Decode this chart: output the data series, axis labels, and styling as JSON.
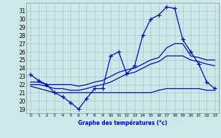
{
  "background_color": "#cce8e8",
  "grid_color": "#aacccc",
  "line_color": "#0000aa",
  "xlabel": "Graphe des températures (°c)",
  "xlim": [
    -0.5,
    23.5
  ],
  "ylim": [
    18.5,
    32.0
  ],
  "yticks": [
    19,
    20,
    21,
    22,
    23,
    24,
    25,
    26,
    27,
    28,
    29,
    30,
    31
  ],
  "xticks": [
    0,
    1,
    2,
    3,
    4,
    5,
    6,
    7,
    8,
    9,
    10,
    11,
    12,
    13,
    14,
    15,
    16,
    17,
    18,
    19,
    20,
    21,
    22,
    23
  ],
  "curve1_x": [
    0,
    1,
    2,
    3,
    4,
    5,
    6,
    7,
    8,
    9,
    10,
    11,
    12,
    13,
    14,
    15,
    16,
    17,
    18,
    19,
    20,
    21,
    22,
    23
  ],
  "curve1_y": [
    23.2,
    22.5,
    22.0,
    21.0,
    20.5,
    19.8,
    19.0,
    20.3,
    21.5,
    21.5,
    25.5,
    26.0,
    23.3,
    24.3,
    28.0,
    30.0,
    30.5,
    31.5,
    31.3,
    27.5,
    26.0,
    24.5,
    22.3,
    21.5
  ],
  "curve2_x": [
    0,
    1,
    2,
    3,
    4,
    5,
    6,
    7,
    8,
    9,
    10,
    11,
    12,
    13,
    14,
    15,
    16,
    17,
    18,
    19,
    20,
    21,
    22,
    23
  ],
  "curve2_y": [
    22.3,
    22.3,
    22.0,
    22.0,
    22.0,
    22.0,
    21.8,
    22.0,
    22.3,
    22.5,
    23.0,
    23.5,
    23.8,
    24.0,
    24.5,
    25.0,
    25.3,
    26.5,
    27.0,
    27.0,
    25.5,
    25.3,
    25.0,
    25.0
  ],
  "curve3_x": [
    0,
    1,
    2,
    3,
    4,
    5,
    6,
    7,
    8,
    9,
    10,
    11,
    12,
    13,
    14,
    15,
    16,
    17,
    18,
    19,
    20,
    21,
    22,
    23
  ],
  "curve3_y": [
    22.0,
    22.0,
    21.8,
    21.5,
    21.5,
    21.3,
    21.3,
    21.5,
    21.8,
    22.0,
    22.3,
    22.8,
    23.3,
    23.5,
    24.0,
    24.5,
    24.8,
    25.5,
    25.5,
    25.5,
    25.0,
    24.8,
    24.5,
    24.3
  ],
  "curve4_x": [
    0,
    3,
    4,
    5,
    6,
    7,
    8,
    9,
    10,
    11,
    12,
    13,
    14,
    15,
    16,
    17,
    18,
    19,
    20,
    21,
    22,
    23
  ],
  "curve4_y": [
    21.8,
    21.0,
    21.0,
    21.0,
    21.0,
    21.0,
    21.0,
    21.0,
    21.0,
    21.0,
    21.0,
    21.0,
    21.0,
    21.0,
    21.3,
    21.5,
    21.5,
    21.5,
    21.5,
    21.5,
    21.3,
    21.3
  ]
}
